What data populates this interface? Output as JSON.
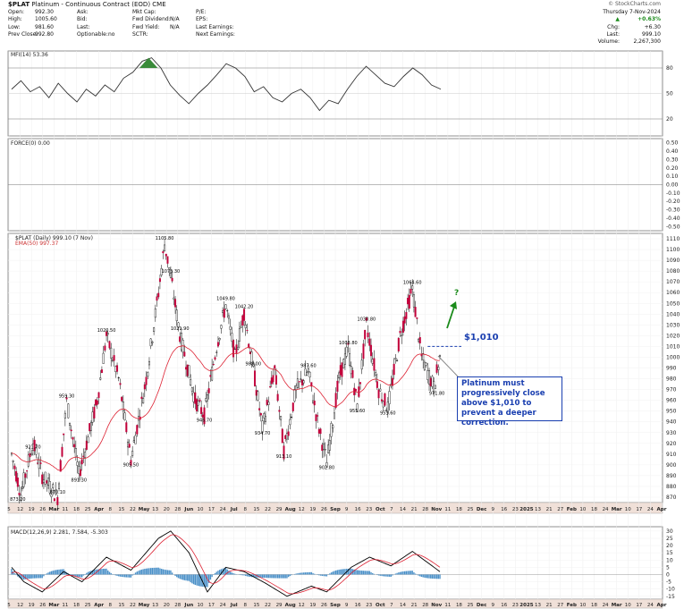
{
  "header": {
    "symbol": "$PLAT",
    "name": "Platinum - Continuous Contract (EOD) CME",
    "source": "© StockCharts.com",
    "date": "Thursday 7-Nov-2024",
    "col1": [
      [
        "Open:",
        "992.30"
      ],
      [
        "High:",
        "1005.60"
      ],
      [
        "Low:",
        "981.60"
      ],
      [
        "Prev Close:",
        "992.80"
      ]
    ],
    "col2": [
      [
        "Ask:",
        ""
      ],
      [
        "Bid:",
        ""
      ],
      [
        "Last:",
        ""
      ],
      [
        "Optionable:",
        "no"
      ]
    ],
    "col3": [
      [
        "Mkt Cap:",
        ""
      ],
      [
        "Fwd Dividend:",
        "N/A"
      ],
      [
        "Fwd Yield:",
        "N/A"
      ],
      [
        "SCTR:",
        ""
      ]
    ],
    "col4": [
      [
        "P/E:",
        ""
      ],
      [
        "EPS:",
        ""
      ],
      [
        "Last Earnings:",
        ""
      ],
      [
        "Next Earnings:",
        ""
      ]
    ],
    "quote": {
      "pct": "+0.63%",
      "chg_label": "Chg:",
      "chg": "+6.30",
      "last_label": "Last:",
      "last": "999.10",
      "vol_label": "Volume:",
      "vol": "2,267,300"
    }
  },
  "panels": {
    "mfi_label": "MFI(14) 53.36",
    "force_label": "FORCE(0) 0.00",
    "price_label": "$PLAT (Daily) 999.10 (7 Nov)",
    "ema_label": "EMA(50) 997.37",
    "macd_label": "MACD(12,26,9) 2.281, 7.584, -5.303"
  },
  "annotations": {
    "level": "$1,010",
    "question": "?",
    "note": "Platinum must progressively close above $1,010 to prevent a deeper correction."
  },
  "chart_data": {
    "type": "candlestick",
    "x_labels": [
      "5",
      "12",
      "19",
      "26",
      "Mar",
      "11",
      "18",
      "25",
      "Apr",
      "8",
      "15",
      "22",
      "May",
      "13",
      "20",
      "28",
      "Jun",
      "10",
      "17",
      "24",
      "Jul",
      "8",
      "15",
      "22",
      "29",
      "Aug",
      "12",
      "19",
      "26",
      "Sep",
      "9",
      "16",
      "23",
      "Oct",
      "7",
      "14",
      "21",
      "28",
      "Nov",
      "11",
      "18",
      "25",
      "Dec",
      "9",
      "16",
      "23",
      "2025",
      "13",
      "21",
      "27",
      "Feb",
      "10",
      "18",
      "24",
      "Mar",
      "10",
      "17",
      "24",
      "Apr"
    ],
    "price_axis": {
      "min": 870,
      "max": 1110,
      "step": 10
    },
    "mfi_axis": [
      80,
      50,
      20
    ],
    "force_axis": [
      0.5,
      0.4,
      0.3,
      0.2,
      0.1,
      0.0,
      -0.1,
      -0.2,
      -0.3,
      -0.4,
      -0.5
    ],
    "macd_axis": [
      30,
      25,
      20,
      15,
      10,
      5,
      0,
      -5,
      -10,
      -15
    ],
    "price_labels": [
      {
        "text": "873.20",
        "v": 873.2
      },
      {
        "text": "870.10",
        "v": 870.1
      },
      {
        "text": "921.70",
        "v": 921.7
      },
      {
        "text": "959.30",
        "v": 959.3
      },
      {
        "text": "891.30",
        "v": 891.3
      },
      {
        "text": "1020.50",
        "v": 1020.5
      },
      {
        "text": "905.50",
        "v": 905.5
      },
      {
        "text": "1105.80",
        "v": 1105.8
      },
      {
        "text": "1075.30",
        "v": 1075.3
      },
      {
        "text": "1021.90",
        "v": 1021.9
      },
      {
        "text": "946.70",
        "v": 946.7
      },
      {
        "text": "1049.80",
        "v": 1049.8
      },
      {
        "text": "1042.20",
        "v": 1042.2
      },
      {
        "text": "989.00",
        "v": 989.0
      },
      {
        "text": "934.70",
        "v": 934.7
      },
      {
        "text": "913.10",
        "v": 913.1
      },
      {
        "text": "987.60",
        "v": 987.6
      },
      {
        "text": "902.80",
        "v": 902.8
      },
      {
        "text": "1008.80",
        "v": 1008.8
      },
      {
        "text": "1030.80",
        "v": 1030.8
      },
      {
        "text": "955.60",
        "v": 955.6
      },
      {
        "text": "953.60",
        "v": 953.6
      },
      {
        "text": "1064.60",
        "v": 1064.6
      },
      {
        "text": "971.80",
        "v": 971.8
      }
    ],
    "level_line": 1010
  }
}
